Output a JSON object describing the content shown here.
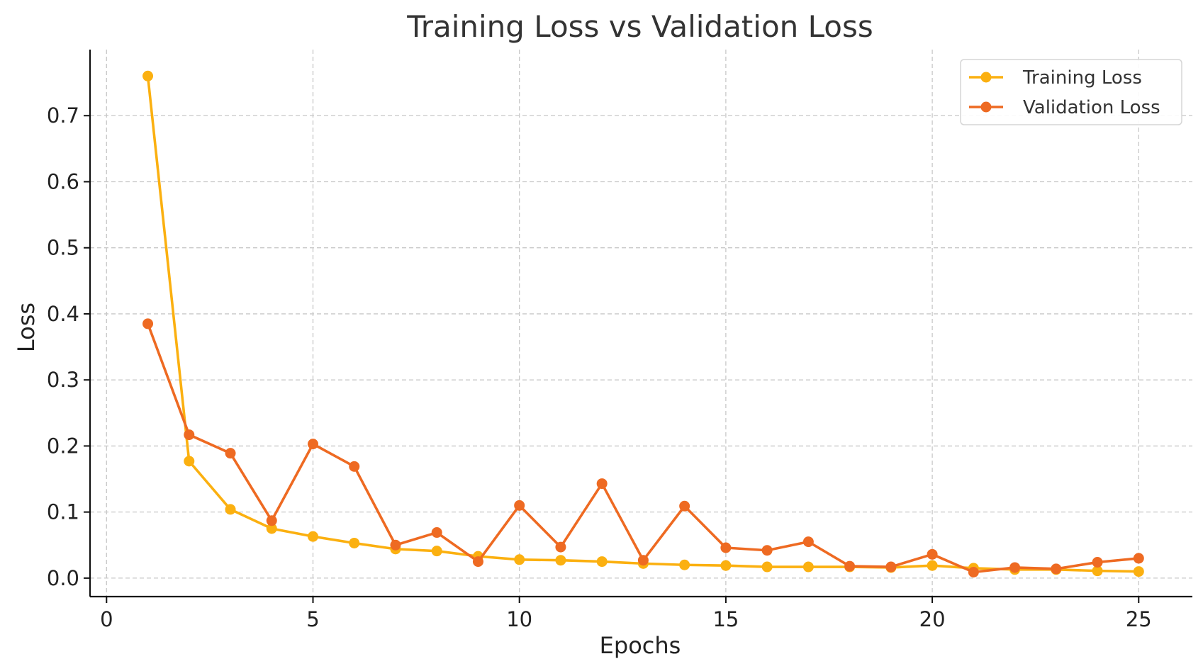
{
  "chart_data": {
    "type": "line",
    "title": "Training Loss vs Validation Loss",
    "xlabel": "Epochs",
    "ylabel": "Loss",
    "xlim": [
      -0.4,
      26.3
    ],
    "ylim": [
      -0.028,
      0.8
    ],
    "xticks": [
      0,
      5,
      10,
      15,
      20,
      25
    ],
    "yticks": [
      0.0,
      0.1,
      0.2,
      0.3,
      0.4,
      0.5,
      0.6,
      0.7
    ],
    "xtick_labels": [
      "0",
      "5",
      "10",
      "15",
      "20",
      "25"
    ],
    "ytick_labels": [
      "0.0",
      "0.1",
      "0.2",
      "0.3",
      "0.4",
      "0.5",
      "0.6",
      "0.7"
    ],
    "grid": true,
    "legend_position": "top-right",
    "x": [
      1,
      2,
      3,
      4,
      5,
      6,
      7,
      8,
      9,
      10,
      11,
      12,
      13,
      14,
      15,
      16,
      17,
      18,
      19,
      20,
      21,
      22,
      23,
      24,
      25
    ],
    "series": [
      {
        "name": "Training Loss",
        "color": "#FBB010",
        "values": [
          0.76,
          0.177,
          0.104,
          0.075,
          0.063,
          0.053,
          0.044,
          0.041,
          0.033,
          0.028,
          0.027,
          0.025,
          0.022,
          0.02,
          0.019,
          0.017,
          0.017,
          0.017,
          0.016,
          0.019,
          0.015,
          0.013,
          0.013,
          0.011,
          0.01
        ]
      },
      {
        "name": "Validation Loss",
        "color": "#EE6A22",
        "values": [
          0.385,
          0.217,
          0.189,
          0.087,
          0.203,
          0.169,
          0.05,
          0.069,
          0.025,
          0.11,
          0.047,
          0.143,
          0.027,
          0.109,
          0.046,
          0.042,
          0.055,
          0.018,
          0.017,
          0.036,
          0.009,
          0.016,
          0.014,
          0.024,
          0.03
        ]
      }
    ]
  }
}
